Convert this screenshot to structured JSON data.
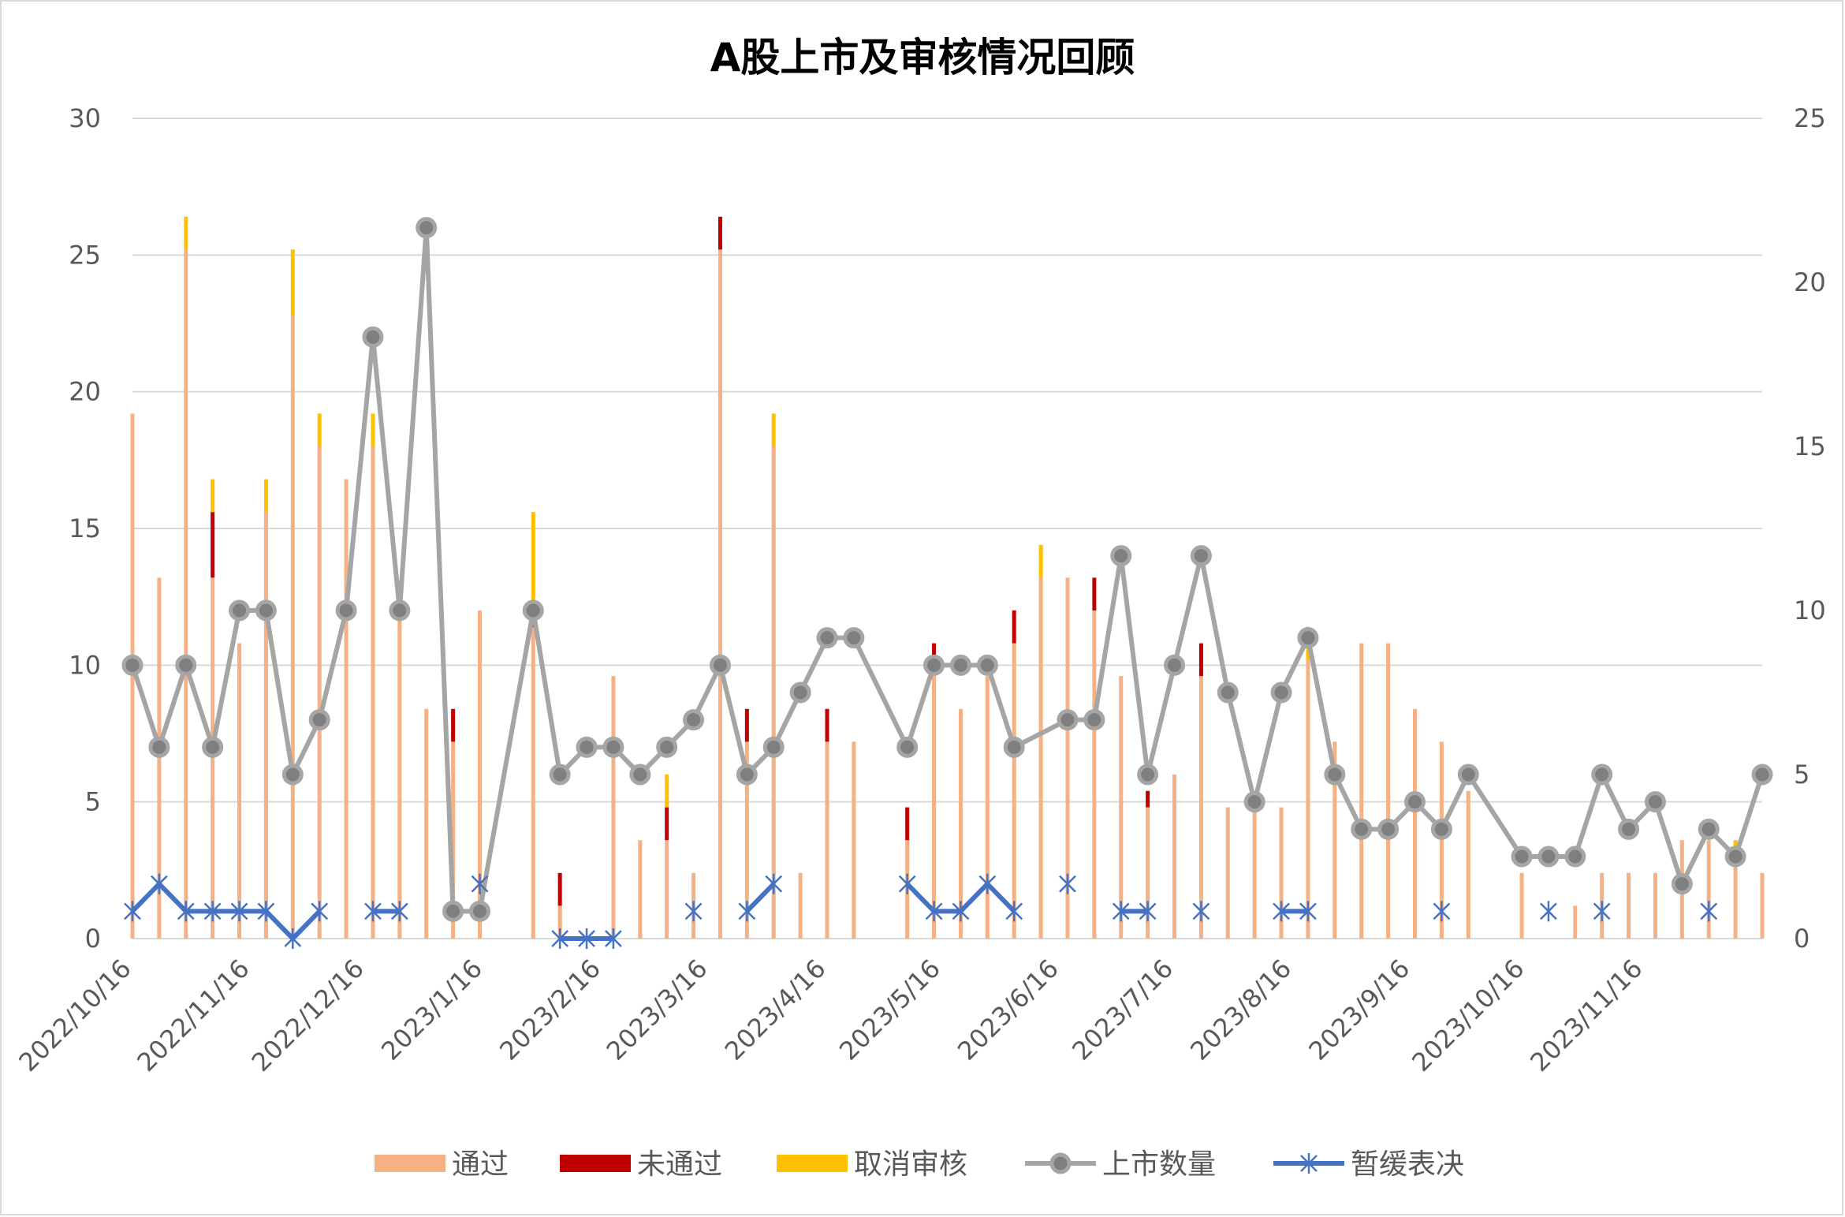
{
  "chart_data": {
    "type": "bar",
    "title": "A股上市及审核情况回顾",
    "left_axis": {
      "ylim": [
        0,
        30
      ],
      "ticks": [
        0,
        5,
        10,
        15,
        20,
        25,
        30
      ]
    },
    "right_axis": {
      "ylim": [
        0,
        25
      ],
      "ticks": [
        0,
        5,
        10,
        15,
        20,
        25
      ]
    },
    "x_start": "2022/10/16",
    "x_end": "2023/12/17",
    "x_tick_labels": [
      "2022/10/16",
      "2022/11/16",
      "2022/12/16",
      "2023/1/16",
      "2023/2/16",
      "2023/3/16",
      "2023/4/16",
      "2023/5/16",
      "2023/6/16",
      "2023/7/16",
      "2023/8/16",
      "2023/9/16",
      "2023/10/16",
      "2023/11/16"
    ],
    "grid": true,
    "legend_position": "bottom",
    "legend": [
      "通过",
      "未通过",
      "取消审核",
      "上市数量",
      "暂缓表决"
    ],
    "colors": {
      "pass": "#F4B183",
      "fail": "#C00000",
      "cancel": "#FFC000",
      "listing": "#A5A5A5",
      "listing_marker": "#7F7F7F",
      "defer": "#4472C4",
      "grid": "#D9D9D9",
      "axis_text": "#595959"
    },
    "series": [
      {
        "name": "通过",
        "axis": "right",
        "kind": "stacked-bar",
        "values": [
          [
            "2022/10/16",
            16
          ],
          [
            "2022/10/23",
            11
          ],
          [
            "2022/10/30",
            21
          ],
          [
            "2022/11/6",
            11
          ],
          [
            "2022/11/13",
            9
          ],
          [
            "2022/11/20",
            13
          ],
          [
            "2022/11/27",
            19
          ],
          [
            "2022/12/4",
            15
          ],
          [
            "2022/12/11",
            14
          ],
          [
            "2022/12/18",
            15
          ],
          [
            "2022/12/25",
            10
          ],
          [
            "2023/1/1",
            7
          ],
          [
            "2023/1/8",
            6
          ],
          [
            "2023/1/15",
            10
          ],
          [
            "2023/1/29",
            9.5
          ],
          [
            "2023/2/5",
            1
          ],
          [
            "2023/2/19",
            8
          ],
          [
            "2023/2/26",
            3
          ],
          [
            "2023/3/5",
            3
          ],
          [
            "2023/3/12",
            2
          ],
          [
            "2023/3/19",
            21
          ],
          [
            "2023/3/26",
            6
          ],
          [
            "2023/4/2",
            15
          ],
          [
            "2023/4/9",
            2
          ],
          [
            "2023/4/16",
            6
          ],
          [
            "2023/4/23",
            6
          ],
          [
            "2023/5/7",
            3
          ],
          [
            "2023/5/14",
            8.5
          ],
          [
            "2023/5/21",
            7
          ],
          [
            "2023/5/28",
            8
          ],
          [
            "2023/6/4",
            9
          ],
          [
            "2023/6/11",
            11
          ],
          [
            "2023/6/18",
            11
          ],
          [
            "2023/6/25",
            10
          ],
          [
            "2023/7/2",
            8
          ],
          [
            "2023/7/9",
            4
          ],
          [
            "2023/7/16",
            5
          ],
          [
            "2023/7/23",
            8
          ],
          [
            "2023/7/30",
            4
          ],
          [
            "2023/8/6",
            4
          ],
          [
            "2023/8/13",
            4
          ],
          [
            "2023/8/20",
            8.5
          ],
          [
            "2023/8/27",
            6
          ],
          [
            "2023/9/3",
            9
          ],
          [
            "2023/9/10",
            9
          ],
          [
            "2023/9/17",
            7
          ],
          [
            "2023/9/24",
            6
          ],
          [
            "2023/10/1",
            4.5
          ],
          [
            "2023/10/15",
            2
          ],
          [
            "2023/10/29",
            1
          ],
          [
            "2023/11/5",
            2
          ],
          [
            "2023/11/12",
            2
          ],
          [
            "2023/11/19",
            2
          ],
          [
            "2023/11/26",
            3
          ],
          [
            "2023/12/3",
            3
          ],
          [
            "2023/12/10",
            2.5
          ],
          [
            "2023/12/17",
            2
          ]
        ]
      },
      {
        "name": "未通过",
        "axis": "right",
        "kind": "stacked-bar",
        "values": [
          [
            "2022/11/6",
            2
          ],
          [
            "2023/1/8",
            1
          ],
          [
            "2023/1/29",
            0.5
          ],
          [
            "2023/2/5",
            1
          ],
          [
            "2023/3/5",
            1
          ],
          [
            "2023/3/19",
            1
          ],
          [
            "2023/3/26",
            1
          ],
          [
            "2023/4/16",
            1
          ],
          [
            "2023/5/7",
            1
          ],
          [
            "2023/5/14",
            0.5
          ],
          [
            "2023/6/4",
            1
          ],
          [
            "2023/6/25",
            1
          ],
          [
            "2023/7/9",
            0.5
          ],
          [
            "2023/7/23",
            1
          ]
        ]
      },
      {
        "name": "取消审核",
        "axis": "right",
        "kind": "stacked-bar",
        "values": [
          [
            "2022/10/30",
            1
          ],
          [
            "2022/11/6",
            1
          ],
          [
            "2022/11/20",
            1
          ],
          [
            "2022/11/27",
            2
          ],
          [
            "2022/12/4",
            1
          ],
          [
            "2022/12/18",
            1
          ],
          [
            "2023/1/29",
            3
          ],
          [
            "2023/3/5",
            1
          ],
          [
            "2023/4/2",
            1
          ],
          [
            "2023/6/11",
            1
          ],
          [
            "2023/8/20",
            1
          ],
          [
            "2023/12/10",
            0.5
          ]
        ]
      },
      {
        "name": "上市数量",
        "axis": "left",
        "kind": "line",
        "values": [
          [
            "2022/10/16",
            10
          ],
          [
            "2022/10/23",
            7
          ],
          [
            "2022/10/30",
            10
          ],
          [
            "2022/11/6",
            7
          ],
          [
            "2022/11/13",
            12
          ],
          [
            "2022/11/20",
            12
          ],
          [
            "2022/11/27",
            6
          ],
          [
            "2022/12/4",
            8
          ],
          [
            "2022/12/11",
            12
          ],
          [
            "2022/12/18",
            22
          ],
          [
            "2022/12/25",
            12
          ],
          [
            "2023/1/1",
            26
          ],
          [
            "2023/1/8",
            1
          ],
          [
            "2023/1/15",
            1
          ],
          [
            "2023/1/29",
            12
          ],
          [
            "2023/2/5",
            6
          ],
          [
            "2023/2/12",
            7
          ],
          [
            "2023/2/19",
            7
          ],
          [
            "2023/2/26",
            6
          ],
          [
            "2023/3/5",
            7
          ],
          [
            "2023/3/12",
            8
          ],
          [
            "2023/3/19",
            10
          ],
          [
            "2023/3/26",
            6
          ],
          [
            "2023/4/2",
            7
          ],
          [
            "2023/4/9",
            9
          ],
          [
            "2023/4/16",
            11
          ],
          [
            "2023/4/23",
            11
          ],
          [
            "2023/5/7",
            7
          ],
          [
            "2023/5/14",
            10
          ],
          [
            "2023/5/21",
            10
          ],
          [
            "2023/5/28",
            10
          ],
          [
            "2023/6/4",
            7
          ],
          [
            "2023/6/18",
            8
          ],
          [
            "2023/6/25",
            8
          ],
          [
            "2023/7/2",
            14
          ],
          [
            "2023/7/9",
            6
          ],
          [
            "2023/7/16",
            10
          ],
          [
            "2023/7/23",
            14
          ],
          [
            "2023/7/30",
            9
          ],
          [
            "2023/8/6",
            5
          ],
          [
            "2023/8/13",
            9
          ],
          [
            "2023/8/20",
            11
          ],
          [
            "2023/8/27",
            6
          ],
          [
            "2023/9/3",
            4
          ],
          [
            "2023/9/10",
            4
          ],
          [
            "2023/9/17",
            5
          ],
          [
            "2023/9/24",
            4
          ],
          [
            "2023/10/1",
            6
          ],
          [
            "2023/10/15",
            3
          ],
          [
            "2023/10/22",
            3
          ],
          [
            "2023/10/29",
            3
          ],
          [
            "2023/11/5",
            6
          ],
          [
            "2023/11/12",
            4
          ],
          [
            "2023/11/19",
            5
          ],
          [
            "2023/11/26",
            2
          ],
          [
            "2023/12/3",
            4
          ],
          [
            "2023/12/10",
            3
          ],
          [
            "2023/12/17",
            6
          ]
        ]
      },
      {
        "name": "暂缓表决",
        "axis": "left",
        "kind": "line-segments",
        "segments": [
          [
            [
              "2022/10/16",
              1
            ],
            [
              "2022/10/23",
              2
            ],
            [
              "2022/10/30",
              1
            ],
            [
              "2022/11/6",
              1
            ],
            [
              "2022/11/13",
              1
            ],
            [
              "2022/11/20",
              1
            ],
            [
              "2022/11/27",
              0
            ],
            [
              "2022/12/4",
              1
            ]
          ],
          [
            [
              "2022/12/18",
              1
            ],
            [
              "2022/12/25",
              1
            ]
          ],
          [
            [
              "2023/1/15",
              2
            ]
          ],
          [
            [
              "2023/2/5",
              0
            ],
            [
              "2023/2/12",
              0
            ],
            [
              "2023/2/19",
              0
            ]
          ],
          [
            [
              "2023/3/12",
              1
            ]
          ],
          [
            [
              "2023/3/26",
              1
            ],
            [
              "2023/4/2",
              2
            ]
          ],
          [
            [
              "2023/5/7",
              2
            ],
            [
              "2023/5/14",
              1
            ],
            [
              "2023/5/21",
              1
            ],
            [
              "2023/5/28",
              2
            ],
            [
              "2023/6/4",
              1
            ]
          ],
          [
            [
              "2023/6/18",
              2
            ]
          ],
          [
            [
              "2023/7/2",
              1
            ],
            [
              "2023/7/9",
              1
            ]
          ],
          [
            [
              "2023/7/23",
              1
            ]
          ],
          [
            [
              "2023/8/13",
              1
            ],
            [
              "2023/8/20",
              1
            ]
          ],
          [
            [
              "2023/9/24",
              1
            ]
          ],
          [
            [
              "2023/10/22",
              1
            ]
          ],
          [
            [
              "2023/11/5",
              1
            ]
          ],
          [
            [
              "2023/12/3",
              1
            ]
          ]
        ]
      }
    ]
  }
}
